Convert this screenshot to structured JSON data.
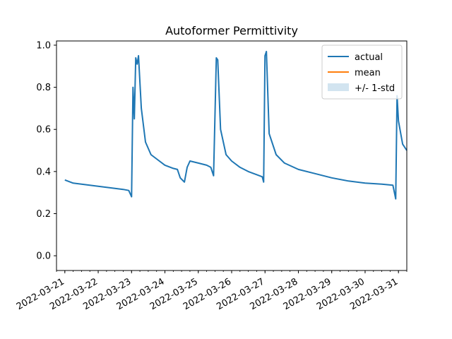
{
  "chart_data": {
    "type": "line",
    "title": "Autoformer Permittivity",
    "xlabel": "",
    "ylabel": "",
    "x_axis": {
      "kind": "date",
      "range": [
        "2022-03-20T18:00",
        "2022-03-31T06:00"
      ],
      "major_ticks": [
        "2022-03-21",
        "2022-03-22",
        "2022-03-23",
        "2022-03-24",
        "2022-03-25",
        "2022-03-26",
        "2022-03-27",
        "2022-03-28",
        "2022-03-29",
        "2022-03-30",
        "2022-03-31"
      ],
      "minor_tick_hours": 6,
      "tick_label_rotation_deg": 30
    },
    "y_axis": {
      "range": [
        -0.07,
        1.02
      ],
      "ticks": [
        0.0,
        0.2,
        0.4,
        0.6,
        0.8,
        1.0
      ],
      "tick_labels": [
        "0.0",
        "0.2",
        "0.4",
        "0.6",
        "0.8",
        "1.0"
      ]
    },
    "grid": false,
    "legend": {
      "placement": "top-right",
      "entries": [
        "actual",
        "mean",
        "+/- 1-std"
      ]
    },
    "colors": {
      "actual": "#1f77b4",
      "mean": "#ff7f0e",
      "band": "#1f77b4"
    },
    "series": [
      {
        "name": "actual",
        "style": "line",
        "points": [
          [
            "2022-03-21T00:00",
            0.36
          ],
          [
            "2022-03-21T06:00",
            0.345
          ],
          [
            "2022-03-21T12:00",
            0.34
          ],
          [
            "2022-03-21T18:00",
            0.335
          ],
          [
            "2022-03-22T00:00",
            0.33
          ],
          [
            "2022-03-22T06:00",
            0.325
          ],
          [
            "2022-03-22T12:00",
            0.32
          ],
          [
            "2022-03-22T18:00",
            0.315
          ],
          [
            "2022-03-22T22:00",
            0.31
          ],
          [
            "2022-03-23T00:00",
            0.28
          ],
          [
            "2022-03-23T01:00",
            0.8
          ],
          [
            "2022-03-23T02:00",
            0.65
          ],
          [
            "2022-03-23T03:00",
            0.94
          ],
          [
            "2022-03-23T04:00",
            0.91
          ],
          [
            "2022-03-23T05:00",
            0.95
          ],
          [
            "2022-03-23T07:00",
            0.7
          ],
          [
            "2022-03-23T10:00",
            0.54
          ],
          [
            "2022-03-23T14:00",
            0.48
          ],
          [
            "2022-03-23T18:00",
            0.46
          ],
          [
            "2022-03-24T00:00",
            0.43
          ],
          [
            "2022-03-24T06:00",
            0.415
          ],
          [
            "2022-03-24T09:00",
            0.41
          ],
          [
            "2022-03-24T11:00",
            0.37
          ],
          [
            "2022-03-24T14:00",
            0.35
          ],
          [
            "2022-03-24T16:00",
            0.42
          ],
          [
            "2022-03-24T18:00",
            0.45
          ],
          [
            "2022-03-25T00:00",
            0.44
          ],
          [
            "2022-03-25T06:00",
            0.43
          ],
          [
            "2022-03-25T09:00",
            0.42
          ],
          [
            "2022-03-25T11:00",
            0.38
          ],
          [
            "2022-03-25T13:00",
            0.94
          ],
          [
            "2022-03-25T14:00",
            0.93
          ],
          [
            "2022-03-25T16:00",
            0.6
          ],
          [
            "2022-03-25T20:00",
            0.48
          ],
          [
            "2022-03-26T00:00",
            0.45
          ],
          [
            "2022-03-26T06:00",
            0.42
          ],
          [
            "2022-03-26T12:00",
            0.4
          ],
          [
            "2022-03-26T18:00",
            0.385
          ],
          [
            "2022-03-26T22:00",
            0.375
          ],
          [
            "2022-03-26T23:00",
            0.35
          ],
          [
            "2022-03-27T00:00",
            0.95
          ],
          [
            "2022-03-27T01:00",
            0.97
          ],
          [
            "2022-03-27T03:00",
            0.58
          ],
          [
            "2022-03-27T08:00",
            0.48
          ],
          [
            "2022-03-27T14:00",
            0.44
          ],
          [
            "2022-03-28T00:00",
            0.41
          ],
          [
            "2022-03-28T12:00",
            0.39
          ],
          [
            "2022-03-29T00:00",
            0.37
          ],
          [
            "2022-03-29T12:00",
            0.355
          ],
          [
            "2022-03-30T00:00",
            0.345
          ],
          [
            "2022-03-30T12:00",
            0.34
          ],
          [
            "2022-03-30T20:00",
            0.335
          ],
          [
            "2022-03-30T22:00",
            0.27
          ],
          [
            "2022-03-30T23:00",
            0.76
          ],
          [
            "2022-03-31T00:00",
            0.64
          ],
          [
            "2022-03-31T03:00",
            0.53
          ],
          [
            "2022-03-31T06:00",
            0.5
          ]
        ]
      }
    ]
  }
}
